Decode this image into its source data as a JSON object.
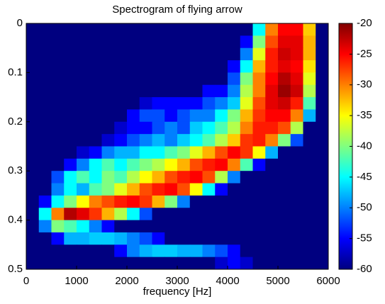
{
  "chart_data": {
    "type": "heatmap",
    "title": "Spectrogram of flying arrow",
    "xlabel": "frequency [Hz]",
    "colormap": "jet",
    "y_direction": "reversed",
    "x": [
      125,
      375,
      625,
      875,
      1125,
      1375,
      1625,
      1875,
      2125,
      2375,
      2625,
      2875,
      3125,
      3375,
      3625,
      3875,
      4125,
      4375,
      4625,
      4875,
      5125,
      5375,
      5625,
      5875
    ],
    "y": [
      0.0125,
      0.0375,
      0.0625,
      0.0875,
      0.1125,
      0.1375,
      0.1625,
      0.1875,
      0.2125,
      0.2375,
      0.2625,
      0.2875,
      0.3125,
      0.3375,
      0.3625,
      0.3875,
      0.4125,
      0.4375,
      0.4625,
      0.4875
    ],
    "z": [
      [
        -60,
        -60,
        -60,
        -60,
        -60,
        -60,
        -60,
        -60,
        -60,
        -60,
        -60,
        -60,
        -60,
        -60,
        -60,
        -60,
        -60,
        -60,
        -45,
        -30,
        -25,
        -25,
        -33,
        -60
      ],
      [
        -60,
        -60,
        -60,
        -60,
        -60,
        -60,
        -60,
        -60,
        -60,
        -60,
        -60,
        -60,
        -60,
        -60,
        -60,
        -60,
        -60,
        -55,
        -40,
        -28,
        -24,
        -24,
        -32,
        -60
      ],
      [
        -60,
        -60,
        -60,
        -60,
        -60,
        -60,
        -60,
        -60,
        -60,
        -60,
        -60,
        -60,
        -60,
        -60,
        -60,
        -60,
        -60,
        -50,
        -36,
        -26,
        -23,
        -24,
        -32,
        -60
      ],
      [
        -60,
        -60,
        -60,
        -60,
        -60,
        -60,
        -60,
        -60,
        -60,
        -60,
        -60,
        -60,
        -60,
        -60,
        -60,
        -60,
        -55,
        -45,
        -32,
        -26,
        -24,
        -25,
        -34,
        -60
      ],
      [
        -60,
        -60,
        -60,
        -60,
        -60,
        -60,
        -60,
        -60,
        -60,
        -60,
        -60,
        -60,
        -60,
        -60,
        -60,
        -60,
        -52,
        -40,
        -30,
        -25,
        -22,
        -24,
        -36,
        -60
      ],
      [
        -60,
        -60,
        -60,
        -60,
        -60,
        -60,
        -60,
        -60,
        -60,
        -60,
        -60,
        -60,
        -60,
        -60,
        -55,
        -55,
        -50,
        -38,
        -30,
        -24,
        -21,
        -23,
        -38,
        -60
      ],
      [
        -60,
        -60,
        -60,
        -60,
        -60,
        -60,
        -60,
        -60,
        -60,
        -57,
        -55,
        -55,
        -55,
        -55,
        -52,
        -50,
        -47,
        -36,
        -28,
        -24,
        -23,
        -26,
        -42,
        -60
      ],
      [
        -60,
        -60,
        -60,
        -60,
        -60,
        -60,
        -60,
        -60,
        -55,
        -52,
        -52,
        -55,
        -52,
        -50,
        -50,
        -45,
        -40,
        -32,
        -27,
        -25,
        -25,
        -30,
        -48,
        -60
      ],
      [
        -60,
        -60,
        -60,
        -60,
        -60,
        -60,
        -60,
        -57,
        -55,
        -55,
        -52,
        -50,
        -52,
        -47,
        -45,
        -42,
        -38,
        -30,
        -26,
        -26,
        -28,
        -38,
        -60,
        -60
      ],
      [
        -60,
        -60,
        -60,
        -60,
        -60,
        -60,
        -57,
        -55,
        -52,
        -50,
        -48,
        -50,
        -47,
        -45,
        -42,
        -38,
        -33,
        -27,
        -26,
        -30,
        -40,
        -52,
        -60,
        -60
      ],
      [
        -60,
        -60,
        -60,
        -60,
        -57,
        -55,
        -50,
        -48,
        -48,
        -45,
        -45,
        -42,
        -40,
        -36,
        -32,
        -28,
        -25,
        -27,
        -35,
        -48,
        -60,
        -60,
        -60,
        -60
      ],
      [
        -60,
        -60,
        -60,
        -55,
        -50,
        -45,
        -42,
        -45,
        -42,
        -40,
        -38,
        -35,
        -32,
        -28,
        -26,
        -25,
        -30,
        -42,
        -55,
        -60,
        -60,
        -60,
        -60,
        -60
      ],
      [
        -60,
        -60,
        -52,
        -45,
        -42,
        -45,
        -40,
        -42,
        -38,
        -35,
        -32,
        -28,
        -26,
        -25,
        -28,
        -38,
        -50,
        -60,
        -60,
        -60,
        -60,
        -60,
        -60,
        -60
      ],
      [
        -60,
        -60,
        -50,
        -45,
        -48,
        -42,
        -40,
        -36,
        -32,
        -28,
        -26,
        -25,
        -28,
        -35,
        -45,
        -55,
        -60,
        -60,
        -60,
        -60,
        -60,
        -60,
        -60,
        -60
      ],
      [
        -60,
        -55,
        -45,
        -40,
        -35,
        -30,
        -28,
        -26,
        -25,
        -27,
        -32,
        -40,
        -50,
        -60,
        -60,
        -60,
        -60,
        -60,
        -60,
        -60,
        -60,
        -60,
        -60,
        -60
      ],
      [
        -60,
        -45,
        -30,
        -22,
        -24,
        -27,
        -32,
        -38,
        -45,
        -52,
        -60,
        -60,
        -60,
        -60,
        -60,
        -60,
        -60,
        -60,
        -60,
        -60,
        -60,
        -60,
        -60,
        -60
      ],
      [
        -60,
        -50,
        -40,
        -42,
        -45,
        -50,
        -55,
        -60,
        -60,
        -60,
        -60,
        -60,
        -60,
        -60,
        -60,
        -60,
        -60,
        -60,
        -60,
        -60,
        -60,
        -60,
        -60,
        -60
      ],
      [
        -60,
        -60,
        -55,
        -48,
        -48,
        -47,
        -47,
        -48,
        -50,
        -52,
        -55,
        -60,
        -60,
        -60,
        -60,
        -60,
        -60,
        -60,
        -60,
        -60,
        -60,
        -60,
        -60,
        -60
      ],
      [
        -60,
        -60,
        -60,
        -60,
        -60,
        -60,
        -60,
        -55,
        -50,
        -48,
        -47,
        -47,
        -48,
        -48,
        -50,
        -52,
        -55,
        -60,
        -60,
        -60,
        -60,
        -60,
        -60,
        -60
      ],
      [
        -60,
        -60,
        -60,
        -60,
        -60,
        -60,
        -60,
        -60,
        -60,
        -60,
        -60,
        -60,
        -60,
        -60,
        -60,
        -57,
        -55,
        -57,
        -60,
        -60,
        -60,
        -60,
        -60,
        -60
      ]
    ],
    "xlim": [
      0,
      6000
    ],
    "xticks": [
      0,
      1000,
      2000,
      3000,
      4000,
      5000,
      6000
    ],
    "ylim": [
      0,
      0.5
    ],
    "yticks": [
      0,
      0.1,
      0.2,
      0.3,
      0.4,
      0.5
    ],
    "clim": [
      -60,
      -20
    ],
    "cticks": [
      -60,
      -55,
      -50,
      -45,
      -40,
      -35,
      -30,
      -25,
      -20
    ]
  }
}
